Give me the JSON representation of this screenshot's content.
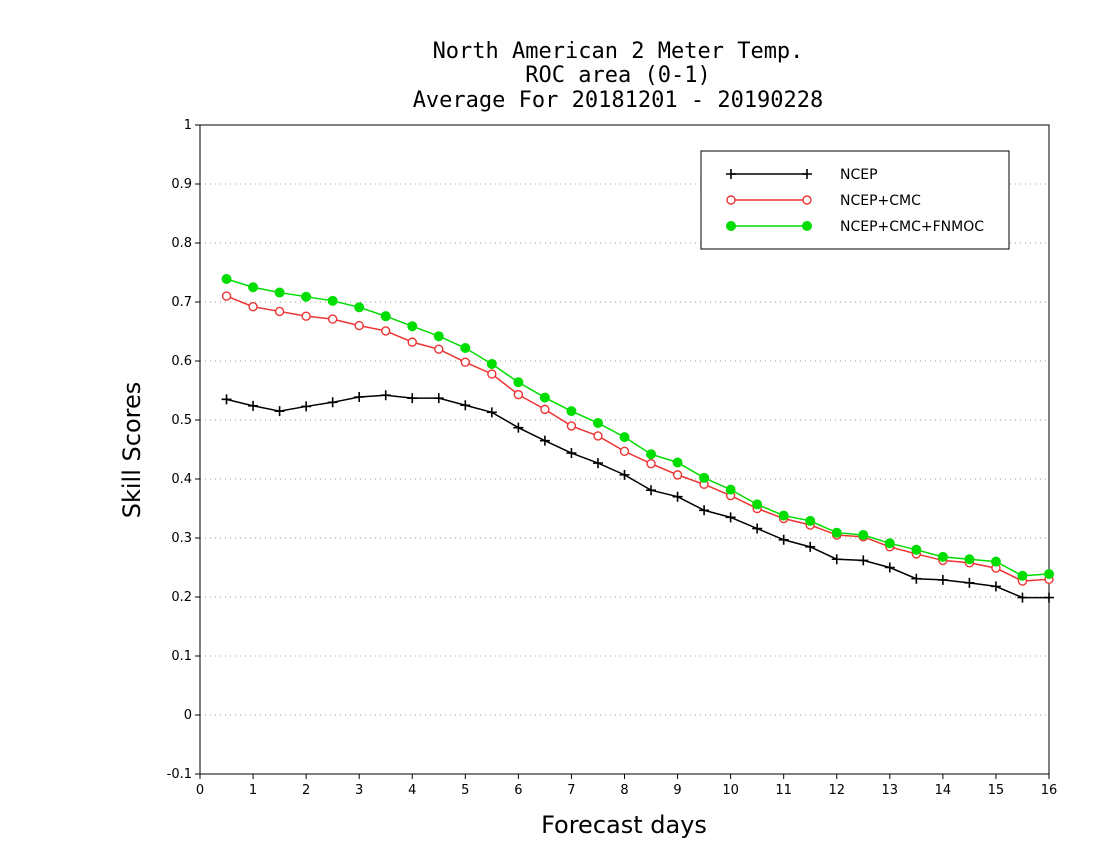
{
  "chart_data": {
    "type": "line",
    "title_lines": [
      "North American 2 Meter Temp.",
      "ROC area (0-1)",
      "Average For 20181201 - 20190228"
    ],
    "xlabel": "Forecast days",
    "ylabel": "Skill Scores",
    "xlim": [
      0,
      16
    ],
    "ylim": [
      -0.1,
      1
    ],
    "x_ticks": [
      "0",
      "1",
      "2",
      "3",
      "4",
      "5",
      "6",
      "7",
      "8",
      "9",
      "10",
      "11",
      "12",
      "13",
      "14",
      "15",
      "16"
    ],
    "y_ticks": [
      "-0.1",
      "0",
      "0.1",
      "0.2",
      "0.3",
      "0.4",
      "0.5",
      "0.6",
      "0.7",
      "0.8",
      "0.9",
      "1"
    ],
    "grid": "horizontal dotted",
    "legend_position": "top-right",
    "x": [
      0.5,
      1,
      1.5,
      2,
      2.5,
      3,
      3.5,
      4,
      4.5,
      5,
      5.5,
      6,
      6.5,
      7,
      7.5,
      8,
      8.5,
      9,
      9.5,
      10,
      10.5,
      11,
      11.5,
      12,
      12.5,
      13,
      13.5,
      14,
      14.5,
      15,
      15.5,
      16
    ],
    "series": [
      {
        "name": "NCEP",
        "color": "#000000",
        "marker": "plus",
        "values": [
          0.535,
          0.524,
          0.515,
          0.523,
          0.53,
          0.539,
          0.542,
          0.537,
          0.537,
          0.525,
          0.513,
          0.487,
          0.465,
          0.444,
          0.427,
          0.407,
          0.381,
          0.37,
          0.347,
          0.335,
          0.316,
          0.297,
          0.285,
          0.264,
          0.262,
          0.25,
          0.231,
          0.229,
          0.224,
          0.218,
          0.199,
          0.199
        ]
      },
      {
        "name": "NCEP+CMC",
        "color": "#ee3333",
        "marker": "open-circle",
        "values": [
          0.71,
          0.692,
          0.684,
          0.676,
          0.671,
          0.66,
          0.651,
          0.632,
          0.62,
          0.598,
          0.578,
          0.543,
          0.518,
          0.49,
          0.473,
          0.447,
          0.426,
          0.407,
          0.391,
          0.372,
          0.35,
          0.333,
          0.322,
          0.305,
          0.302,
          0.285,
          0.273,
          0.262,
          0.258,
          0.249,
          0.227,
          0.23
        ]
      },
      {
        "name": "NCEP+CMC+FNMOC",
        "color": "#00dd00",
        "marker": "filled-circle",
        "values": [
          0.739,
          0.725,
          0.716,
          0.709,
          0.702,
          0.691,
          0.676,
          0.659,
          0.642,
          0.622,
          0.595,
          0.564,
          0.538,
          0.515,
          0.495,
          0.471,
          0.442,
          0.428,
          0.402,
          0.382,
          0.357,
          0.338,
          0.329,
          0.309,
          0.305,
          0.291,
          0.28,
          0.268,
          0.264,
          0.26,
          0.236,
          0.239
        ]
      }
    ]
  }
}
